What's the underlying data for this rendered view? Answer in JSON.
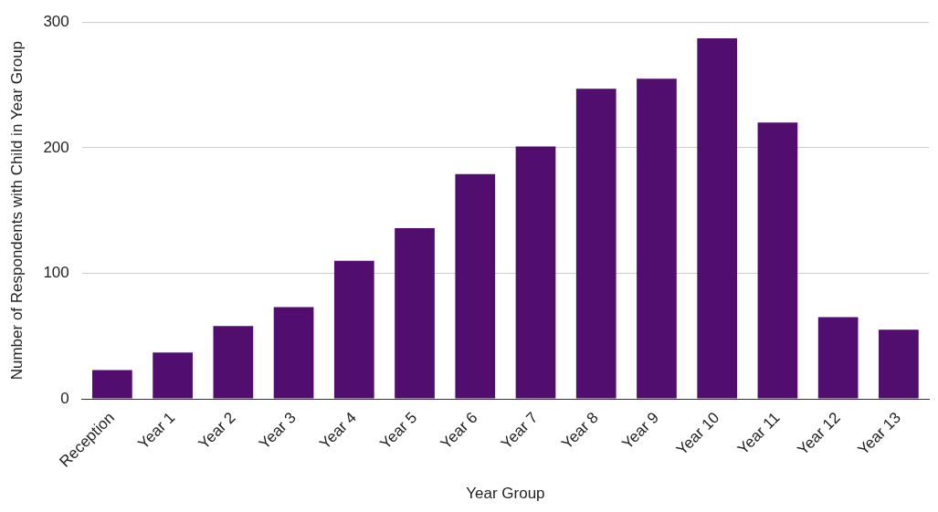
{
  "chart_data": {
    "type": "bar",
    "xlabel": "Year Group",
    "ylabel": "Number of Respondents with Child in Year Group",
    "categories": [
      "Reception",
      "Year 1",
      "Year 2",
      "Year 3",
      "Year 4",
      "Year 5",
      "Year 6",
      "Year 7",
      "Year 8",
      "Year 9",
      "Year 10",
      "Year 11",
      "Year 12",
      "Year 13"
    ],
    "values": [
      23,
      37,
      58,
      73,
      110,
      136,
      179,
      201,
      247,
      255,
      287,
      220,
      65,
      55
    ],
    "color": "#520e6e",
    "ylim": [
      0,
      300
    ],
    "yticks": [
      0,
      100,
      200,
      300
    ],
    "grid": "y",
    "legend": false
  }
}
